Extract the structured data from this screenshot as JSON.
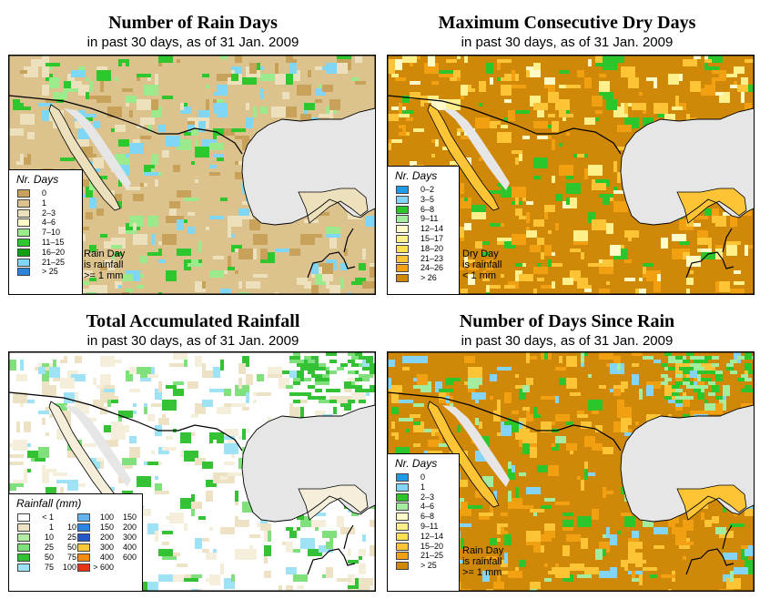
{
  "panels": [
    {
      "id": "rain-days",
      "title": "Number of Rain Days",
      "subtitle": "in past 30 days, as of  31 Jan. 2009",
      "legend_title": "Nr. Days",
      "legend": [
        {
          "label": "0",
          "color": "#c8a25a"
        },
        {
          "label": "1",
          "color": "#dcc38e"
        },
        {
          "label": "2–3",
          "color": "#ede0bd"
        },
        {
          "label": "4–6",
          "color": "#fffcc8"
        },
        {
          "label": "7–10",
          "color": "#9bea8c"
        },
        {
          "label": "11–15",
          "color": "#2ec72e"
        },
        {
          "label": "16–20",
          "color": "#12a012"
        },
        {
          "label": "21–25",
          "color": "#7fd7f5"
        },
        {
          "label": "> 25",
          "color": "#2a84d8"
        }
      ],
      "note": [
        "Rain Day",
        "is rainfall",
        ">= 1 mm"
      ],
      "palette": {
        "base": "#dcc38e",
        "dark": "#c8a25a",
        "light": "#ede0bd",
        "green": "#2ec72e",
        "lightgreen": "#9bea8c",
        "blue": "#7fd7f5"
      }
    },
    {
      "id": "dry-days",
      "title": "Maximum Consecutive Dry Days",
      "subtitle": "in past 30 days, as of  31 Jan. 2009",
      "legend_title": "Nr. Days",
      "legend": [
        {
          "label": "0–2",
          "color": "#1e9ae6"
        },
        {
          "label": "3–5",
          "color": "#84d4f5"
        },
        {
          "label": "6–8",
          "color": "#2cc52c"
        },
        {
          "label": "9–11",
          "color": "#a4eda0"
        },
        {
          "label": "12–14",
          "color": "#fffac8"
        },
        {
          "label": "15–17",
          "color": "#fff08c"
        },
        {
          "label": "18–20",
          "color": "#ffe050"
        },
        {
          "label": "21–23",
          "color": "#fdc436"
        },
        {
          "label": "24–26",
          "color": "#f0a010"
        },
        {
          "label": "> 26",
          "color": "#d08808"
        }
      ],
      "note": [
        "Dry Day",
        "is rainfall",
        "< 1 mm"
      ],
      "palette": {
        "base": "#d08808",
        "dark": "#f0a010",
        "light": "#fdc436",
        "green": "#2cc52c",
        "lightgreen": "#fff08c",
        "blue": "#fffac8"
      }
    },
    {
      "id": "total-rainfall",
      "title": "Total Accumulated Rainfall",
      "subtitle": "in past 30 days, as of  31 Jan. 2009",
      "legend_title": "Rainfall (mm)",
      "legend": [
        {
          "lo": "< 1",
          "hi": "",
          "color": "#ffffff"
        },
        {
          "lo": "1",
          "hi": "10",
          "color": "#ede2c3"
        },
        {
          "lo": "10",
          "hi": "25",
          "color": "#b4eca4"
        },
        {
          "lo": "25",
          "hi": "50",
          "color": "#7fe07c"
        },
        {
          "lo": "50",
          "hi": "75",
          "color": "#34c234"
        },
        {
          "lo": "75",
          "hi": "100",
          "color": "#9ee2f6"
        },
        {
          "lo": "100",
          "hi": "150",
          "color": "#60b4f0"
        },
        {
          "lo": "150",
          "hi": "200",
          "color": "#2a84e0"
        },
        {
          "lo": "200",
          "hi": "300",
          "color": "#2258c8"
        },
        {
          "lo": "300",
          "hi": "400",
          "color": "#fcc838"
        },
        {
          "lo": "400",
          "hi": "600",
          "color": "#f48c14"
        },
        {
          "lo": "> 600",
          "hi": "",
          "color": "#e83214"
        }
      ],
      "palette": {
        "base": "#ffffff",
        "dark": "#ede2c3",
        "light": "#f5eedb",
        "green": "#34c234",
        "lightgreen": "#7fe07c",
        "blue": "#9ee2f6"
      }
    },
    {
      "id": "days-since-rain",
      "title": "Number of Days Since Rain",
      "subtitle": "in past 30 days, as of  31 Jan. 2009",
      "legend_title": "Nr. Days",
      "legend": [
        {
          "label": "0",
          "color": "#1e9ae6"
        },
        {
          "label": "1",
          "color": "#84d4f5"
        },
        {
          "label": "2–3",
          "color": "#2cc52c"
        },
        {
          "label": "4–6",
          "color": "#a4eda0"
        },
        {
          "label": "6–8",
          "color": "#fffac8"
        },
        {
          "label": "9–11",
          "color": "#fff08c"
        },
        {
          "label": "12–14",
          "color": "#ffe050"
        },
        {
          "label": "15–20",
          "color": "#fdc436"
        },
        {
          "label": "21–25",
          "color": "#f0a010"
        },
        {
          "label": "> 25",
          "color": "#d08808"
        }
      ],
      "note": [
        "Rain Day",
        "is rainfall",
        ">= 1 mm"
      ],
      "palette": {
        "base": "#d08808",
        "dark": "#f0a010",
        "light": "#fdc436",
        "green": "#2cc52c",
        "lightgreen": "#a4eda0",
        "blue": "#84d4f5"
      }
    }
  ]
}
